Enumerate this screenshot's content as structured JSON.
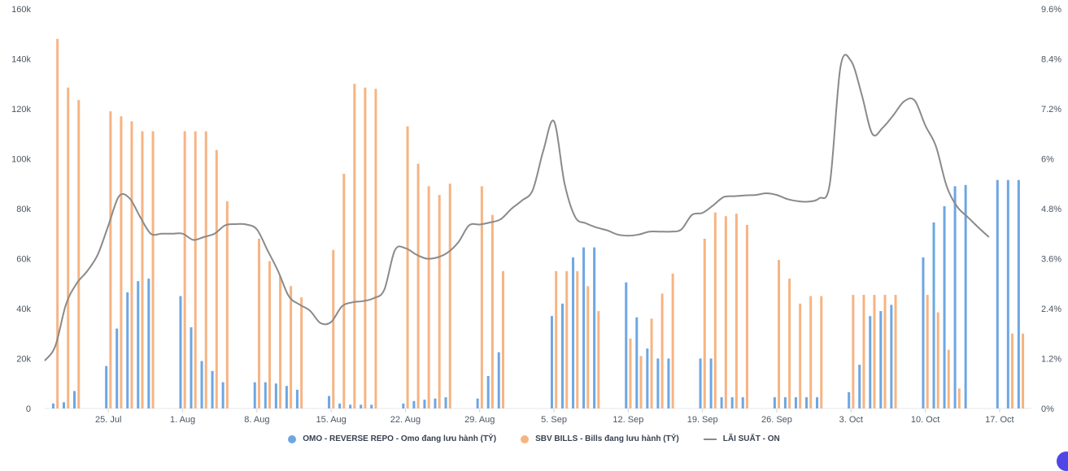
{
  "chart_data": {
    "type": "bar+line",
    "y_left": {
      "min": 0,
      "max": 160000,
      "ticks": [
        "0",
        "20k",
        "40k",
        "60k",
        "80k",
        "100k",
        "120k",
        "140k",
        "160k"
      ]
    },
    "y_right": {
      "min": 0,
      "max": 9.6,
      "ticks": [
        "0%",
        "1.2%",
        "2.4%",
        "3.6%",
        "4.8%",
        "6%",
        "7.2%",
        "8.4%",
        "9.6%"
      ]
    },
    "x_range": [
      0,
      93
    ],
    "x_ticks": [
      {
        "pos": 6,
        "label": "25. Jul"
      },
      {
        "pos": 13,
        "label": "1. Aug"
      },
      {
        "pos": 20,
        "label": "8. Aug"
      },
      {
        "pos": 27,
        "label": "15. Aug"
      },
      {
        "pos": 34,
        "label": "22. Aug"
      },
      {
        "pos": 41,
        "label": "29. Aug"
      },
      {
        "pos": 48,
        "label": "5. Sep"
      },
      {
        "pos": 55,
        "label": "12. Sep"
      },
      {
        "pos": 62,
        "label": "19. Sep"
      },
      {
        "pos": 69,
        "label": "26. Sep"
      },
      {
        "pos": 76,
        "label": "3. Oct"
      },
      {
        "pos": 83,
        "label": "10. Oct"
      },
      {
        "pos": 90,
        "label": "17. Oct"
      }
    ],
    "colors": {
      "omo": "#6ea6e2",
      "bills": "#f6b483",
      "rate": "#8a8a8a"
    },
    "series": [
      {
        "name": "OMO - REVERSE REPO - Omo đang lưu hành (TỶ)",
        "type": "bar",
        "axis": "left",
        "points": [
          [
            0.8,
            2000
          ],
          [
            1.8,
            2500
          ],
          [
            2.8,
            7000
          ],
          [
            5.8,
            17000
          ],
          [
            6.8,
            32000
          ],
          [
            7.8,
            46500
          ],
          [
            8.8,
            51000
          ],
          [
            9.8,
            52000
          ],
          [
            12.8,
            45000
          ],
          [
            13.8,
            32500
          ],
          [
            14.8,
            19000
          ],
          [
            15.8,
            15000
          ],
          [
            16.8,
            10500
          ],
          [
            19.8,
            10500
          ],
          [
            20.8,
            10500
          ],
          [
            21.8,
            10000
          ],
          [
            22.8,
            9000
          ],
          [
            23.8,
            7500
          ],
          [
            26.8,
            5000
          ],
          [
            27.8,
            2000
          ],
          [
            28.8,
            1500
          ],
          [
            29.8,
            1500
          ],
          [
            30.8,
            1500
          ],
          [
            33.8,
            2000
          ],
          [
            34.8,
            3000
          ],
          [
            35.8,
            3500
          ],
          [
            36.8,
            4000
          ],
          [
            37.8,
            4500
          ],
          [
            40.8,
            4000
          ],
          [
            41.8,
            13000
          ],
          [
            42.8,
            22500
          ],
          [
            47.8,
            37000
          ],
          [
            48.8,
            42000
          ],
          [
            49.8,
            60500
          ],
          [
            50.8,
            64500
          ],
          [
            51.8,
            64500
          ],
          [
            54.8,
            50500
          ],
          [
            55.8,
            36500
          ],
          [
            56.8,
            24000
          ],
          [
            57.8,
            20000
          ],
          [
            58.8,
            20000
          ],
          [
            61.8,
            20000
          ],
          [
            62.8,
            20000
          ],
          [
            63.8,
            4500
          ],
          [
            64.8,
            4500
          ],
          [
            65.8,
            4500
          ],
          [
            68.8,
            4500
          ],
          [
            69.8,
            4500
          ],
          [
            70.8,
            4500
          ],
          [
            71.8,
            4500
          ],
          [
            72.8,
            4500
          ],
          [
            75.8,
            6500
          ],
          [
            76.8,
            17500
          ],
          [
            77.8,
            37000
          ],
          [
            78.8,
            39000
          ],
          [
            79.8,
            41500
          ],
          [
            82.8,
            60500
          ],
          [
            83.8,
            74500
          ],
          [
            84.8,
            81000
          ],
          [
            85.8,
            89000
          ],
          [
            86.8,
            89500
          ],
          [
            89.8,
            91500
          ],
          [
            90.8,
            91500
          ],
          [
            91.8,
            91500
          ]
        ]
      },
      {
        "name": "SBV BILLS - Bills đang lưu hành (TỶ)",
        "type": "bar",
        "axis": "left",
        "points": [
          [
            1.2,
            148000
          ],
          [
            2.2,
            128500
          ],
          [
            3.2,
            123500
          ],
          [
            6.2,
            119000
          ],
          [
            7.2,
            117000
          ],
          [
            8.2,
            115000
          ],
          [
            9.2,
            111000
          ],
          [
            10.2,
            111000
          ],
          [
            13.2,
            111000
          ],
          [
            14.2,
            111000
          ],
          [
            15.2,
            111000
          ],
          [
            16.2,
            103500
          ],
          [
            17.2,
            83000
          ],
          [
            20.2,
            68000
          ],
          [
            21.2,
            59000
          ],
          [
            22.2,
            53000
          ],
          [
            23.2,
            49000
          ],
          [
            24.2,
            44500
          ],
          [
            27.2,
            63500
          ],
          [
            28.2,
            94000
          ],
          [
            29.2,
            130000
          ],
          [
            30.2,
            128500
          ],
          [
            31.2,
            128000
          ],
          [
            34.2,
            113000
          ],
          [
            35.2,
            98000
          ],
          [
            36.2,
            89000
          ],
          [
            37.2,
            85500
          ],
          [
            38.2,
            90000
          ],
          [
            41.2,
            89000
          ],
          [
            42.2,
            77500
          ],
          [
            43.2,
            55000
          ],
          [
            48.2,
            55000
          ],
          [
            49.2,
            55000
          ],
          [
            50.2,
            55000
          ],
          [
            51.2,
            49000
          ],
          [
            52.2,
            39000
          ],
          [
            55.2,
            28000
          ],
          [
            56.2,
            21000
          ],
          [
            57.2,
            36000
          ],
          [
            58.2,
            46000
          ],
          [
            59.2,
            54000
          ],
          [
            62.2,
            68000
          ],
          [
            63.2,
            78500
          ],
          [
            64.2,
            77000
          ],
          [
            65.2,
            78000
          ],
          [
            66.2,
            73500
          ],
          [
            69.2,
            59500
          ],
          [
            70.2,
            52000
          ],
          [
            71.2,
            42000
          ],
          [
            72.2,
            45000
          ],
          [
            73.2,
            45000
          ],
          [
            76.2,
            45500
          ],
          [
            77.2,
            45500
          ],
          [
            78.2,
            45500
          ],
          [
            79.2,
            45500
          ],
          [
            80.2,
            45500
          ],
          [
            83.2,
            45500
          ],
          [
            84.2,
            38500
          ],
          [
            85.2,
            23500
          ],
          [
            86.2,
            8000
          ],
          [
            91.2,
            30000
          ],
          [
            92.2,
            30000
          ]
        ]
      },
      {
        "name": "LÃI SUẤT - ON",
        "type": "line",
        "axis": "right",
        "points": [
          [
            0,
            1.15
          ],
          [
            1,
            1.5
          ],
          [
            2,
            2.5
          ],
          [
            3,
            3.0
          ],
          [
            4,
            3.3
          ],
          [
            5,
            3.7
          ],
          [
            6,
            4.4
          ],
          [
            7,
            5.1
          ],
          [
            8,
            5.05
          ],
          [
            9,
            4.6
          ],
          [
            10,
            4.2
          ],
          [
            11,
            4.2
          ],
          [
            12,
            4.2
          ],
          [
            13,
            4.2
          ],
          [
            14,
            4.05
          ],
          [
            15,
            4.12
          ],
          [
            16,
            4.2
          ],
          [
            17,
            4.4
          ],
          [
            18,
            4.43
          ],
          [
            19,
            4.42
          ],
          [
            20,
            4.3
          ],
          [
            21,
            3.8
          ],
          [
            22,
            3.3
          ],
          [
            23,
            2.7
          ],
          [
            24,
            2.5
          ],
          [
            25,
            2.35
          ],
          [
            26,
            2.05
          ],
          [
            27,
            2.08
          ],
          [
            28,
            2.45
          ],
          [
            29,
            2.55
          ],
          [
            30,
            2.58
          ],
          [
            31,
            2.65
          ],
          [
            32,
            2.85
          ],
          [
            33,
            3.8
          ],
          [
            34,
            3.85
          ],
          [
            35,
            3.7
          ],
          [
            36,
            3.6
          ],
          [
            37,
            3.63
          ],
          [
            38,
            3.75
          ],
          [
            39,
            4.0
          ],
          [
            40,
            4.4
          ],
          [
            41,
            4.42
          ],
          [
            42,
            4.47
          ],
          [
            43,
            4.55
          ],
          [
            44,
            4.8
          ],
          [
            45,
            5.0
          ],
          [
            46,
            5.25
          ],
          [
            47,
            6.2
          ],
          [
            48,
            6.9
          ],
          [
            49,
            5.4
          ],
          [
            50,
            4.6
          ],
          [
            51,
            4.45
          ],
          [
            52,
            4.35
          ],
          [
            53,
            4.28
          ],
          [
            54,
            4.18
          ],
          [
            55,
            4.15
          ],
          [
            56,
            4.18
          ],
          [
            57,
            4.25
          ],
          [
            58,
            4.25
          ],
          [
            59,
            4.25
          ],
          [
            60,
            4.3
          ],
          [
            61,
            4.65
          ],
          [
            62,
            4.7
          ],
          [
            63,
            4.88
          ],
          [
            64,
            5.08
          ],
          [
            65,
            5.1
          ],
          [
            66,
            5.12
          ],
          [
            67,
            5.13
          ],
          [
            68,
            5.17
          ],
          [
            69,
            5.13
          ],
          [
            70,
            5.03
          ],
          [
            71,
            4.98
          ],
          [
            72,
            4.97
          ],
          [
            73,
            5.05
          ],
          [
            74,
            5.4
          ],
          [
            75,
            8.2
          ],
          [
            76,
            8.35
          ],
          [
            77,
            7.55
          ],
          [
            78,
            6.6
          ],
          [
            79,
            6.75
          ],
          [
            80,
            7.05
          ],
          [
            81,
            7.38
          ],
          [
            82,
            7.4
          ],
          [
            83,
            6.8
          ],
          [
            84,
            6.3
          ],
          [
            85,
            5.35
          ],
          [
            86,
            4.85
          ],
          [
            87,
            4.6
          ],
          [
            88,
            4.35
          ],
          [
            89,
            4.12
          ]
        ]
      }
    ]
  }
}
